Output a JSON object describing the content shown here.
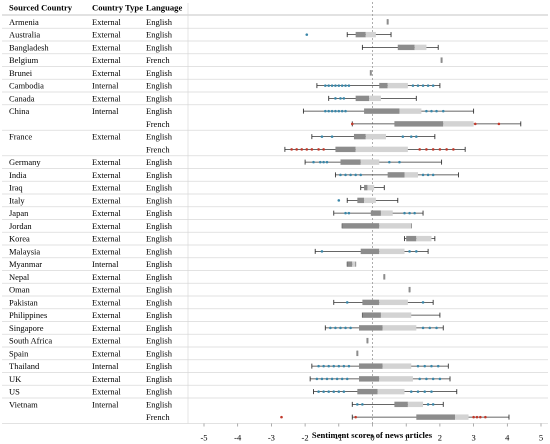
{
  "table": {
    "headers": [
      "Sourced Country",
      "Country Type",
      "Language"
    ]
  },
  "chart_data": {
    "type": "box",
    "xlabel": "Sentiment scores of news articles",
    "xlim": [
      -5.5,
      5
    ],
    "xticks": [
      -5,
      -4,
      -3,
      -2,
      -1,
      0,
      1,
      2,
      3,
      4,
      5
    ],
    "reference_line": 0,
    "colors": {
      "whisker": "#333333",
      "box_lower": "#8c8c8c",
      "box_upper": "#d3d3d3",
      "outlier_english": "#3a86a8",
      "outlier_french": "#c0392b",
      "grid": "#d9d9d9",
      "zero_line": "#999999"
    },
    "rows": [
      {
        "country": "Armenia",
        "type": "External",
        "language": "English",
        "min": 0.45,
        "q1": 0.45,
        "median": 0.45,
        "q3": 0.45,
        "max": 0.45,
        "outliers": []
      },
      {
        "country": "Australia",
        "type": "External",
        "language": "English",
        "min": -0.75,
        "q1": -0.5,
        "median": -0.2,
        "q3": 0.1,
        "max": 0.55,
        "outliers": [
          -1.95
        ]
      },
      {
        "country": "Bangladesh",
        "type": "External",
        "language": "English",
        "min": -0.3,
        "q1": 0.75,
        "median": 1.25,
        "q3": 1.6,
        "max": 1.95,
        "outliers": []
      },
      {
        "country": "Belgium",
        "type": "External",
        "language": "French",
        "min": 2.05,
        "q1": 2.05,
        "median": 2.05,
        "q3": 2.05,
        "max": 2.05,
        "outliers": []
      },
      {
        "country": "Brunei",
        "type": "External",
        "language": "English",
        "min": -0.05,
        "q1": -0.05,
        "median": -0.05,
        "q3": -0.05,
        "max": -0.05,
        "outliers": []
      },
      {
        "country": "Cambodia",
        "type": "Internal",
        "language": "English",
        "min": -1.65,
        "q1": 0.2,
        "median": 0.45,
        "q3": 1.05,
        "max": 2.0,
        "outliers": [
          -1.4,
          -1.3,
          -1.2,
          -1.1,
          -1.0,
          -0.9,
          -0.8,
          -0.7,
          1.2,
          1.35,
          1.5,
          1.65,
          1.8
        ]
      },
      {
        "country": "Canada",
        "type": "External",
        "language": "English",
        "min": -1.3,
        "q1": -0.5,
        "median": -0.1,
        "q3": 0.25,
        "max": 1.3,
        "outliers": [
          -1.1,
          -0.95,
          -0.85
        ]
      },
      {
        "country": "China",
        "type": "Internal",
        "language": "English",
        "min": -2.05,
        "q1": -0.25,
        "median": 0.8,
        "q3": 1.45,
        "max": 3.0,
        "outliers": [
          -1.4,
          -1.3,
          -1.2,
          -1.1,
          -1.0,
          -0.9,
          -0.8,
          1.6,
          1.75,
          1.9,
          2.1
        ]
      },
      {
        "country": "",
        "type": "",
        "language": "French",
        "min": -0.6,
        "q1": 0.65,
        "median": 2.1,
        "q3": 3.0,
        "max": 4.4,
        "outliers": [
          -0.6,
          3.05,
          3.75
        ]
      },
      {
        "country": "France",
        "type": "External",
        "language": "English",
        "min": -1.8,
        "q1": -0.55,
        "median": -0.2,
        "q3": 0.4,
        "max": 1.85,
        "outliers": [
          -1.5,
          -1.2,
          0.9,
          1.15,
          1.3
        ]
      },
      {
        "country": "",
        "type": "",
        "language": "French",
        "min": -2.6,
        "q1": -1.1,
        "median": -0.5,
        "q3": 1.05,
        "max": 2.75,
        "outliers": [
          -2.4,
          -2.25,
          -2.1,
          -1.95,
          -1.8,
          -1.6,
          -1.45,
          1.4,
          1.6,
          1.8,
          2.0,
          2.2,
          2.4
        ]
      },
      {
        "country": "Germany",
        "type": "External",
        "language": "English",
        "min": -2.0,
        "q1": -0.95,
        "median": -0.35,
        "q3": 0.2,
        "max": 2.05,
        "outliers": [
          -1.75,
          -1.55,
          -1.45,
          -1.35,
          0.5,
          0.8
        ]
      },
      {
        "country": "India",
        "type": "External",
        "language": "English",
        "min": -1.1,
        "q1": 0.45,
        "median": 0.95,
        "q3": 1.35,
        "max": 2.55,
        "outliers": [
          -0.95,
          -0.8,
          -0.65,
          -0.5,
          -0.35,
          1.5,
          1.65,
          1.8
        ]
      },
      {
        "country": "Iraq",
        "type": "External",
        "language": "English",
        "min": -0.35,
        "q1": -0.25,
        "median": -0.15,
        "q3": 0.05,
        "max": 0.35,
        "outliers": []
      },
      {
        "country": "Italy",
        "type": "External",
        "language": "English",
        "min": -0.75,
        "q1": -0.45,
        "median": -0.25,
        "q3": 0.1,
        "max": 0.75,
        "outliers": [
          -1.0
        ]
      },
      {
        "country": "Japan",
        "type": "External",
        "language": "English",
        "min": -1.15,
        "q1": -0.05,
        "median": 0.25,
        "q3": 0.6,
        "max": 1.5,
        "outliers": [
          -0.8,
          -0.7,
          0.95,
          1.1,
          1.25
        ]
      },
      {
        "country": "Jordan",
        "type": "External",
        "language": "English",
        "min": -0.9,
        "q1": -0.9,
        "median": 0.2,
        "q3": 1.15,
        "max": 1.15,
        "outliers": []
      },
      {
        "country": "Korea",
        "type": "External",
        "language": "English",
        "min": 0.95,
        "q1": 1.0,
        "median": 1.3,
        "q3": 1.75,
        "max": 1.85,
        "outliers": []
      },
      {
        "country": "Malaysia",
        "type": "External",
        "language": "English",
        "min": -1.7,
        "q1": -0.35,
        "median": 0.2,
        "q3": 0.95,
        "max": 1.65,
        "outliers": [
          -1.5,
          1.1,
          1.3
        ]
      },
      {
        "country": "Myanmar",
        "type": "Internal",
        "language": "English",
        "min": -0.75,
        "q1": -0.75,
        "median": -0.6,
        "q3": -0.5,
        "max": -0.5,
        "outliers": []
      },
      {
        "country": "Nepal",
        "type": "External",
        "language": "English",
        "min": 0.35,
        "q1": 0.35,
        "median": 0.35,
        "q3": 0.35,
        "max": 0.35,
        "outliers": []
      },
      {
        "country": "Oman",
        "type": "External",
        "language": "English",
        "min": 1.1,
        "q1": 1.1,
        "median": 1.1,
        "q3": 1.1,
        "max": 1.1,
        "outliers": []
      },
      {
        "country": "Pakistan",
        "type": "External",
        "language": "English",
        "min": -1.15,
        "q1": -0.3,
        "median": 0.2,
        "q3": 1.05,
        "max": 1.8,
        "outliers": [
          -0.75,
          1.5
        ]
      },
      {
        "country": "Philippines",
        "type": "External",
        "language": "English",
        "min": -0.3,
        "q1": -0.3,
        "median": 0.25,
        "q3": 1.15,
        "max": 2.0,
        "outliers": []
      },
      {
        "country": "Singapore",
        "type": "External",
        "language": "English",
        "min": -1.4,
        "q1": -0.4,
        "median": 0.3,
        "q3": 1.3,
        "max": 2.1,
        "outliers": [
          -1.25,
          -1.1,
          -0.95,
          -0.8,
          -0.65,
          1.5,
          1.7,
          1.9
        ]
      },
      {
        "country": "South Africa",
        "type": "External",
        "language": "English",
        "min": -0.15,
        "q1": -0.15,
        "median": -0.15,
        "q3": -0.15,
        "max": -0.15,
        "outliers": []
      },
      {
        "country": "Spain",
        "type": "External",
        "language": "English",
        "min": -0.45,
        "q1": -0.45,
        "median": -0.45,
        "q3": -0.45,
        "max": -0.45,
        "outliers": []
      },
      {
        "country": "Thailand",
        "type": "Internal",
        "language": "English",
        "min": -1.8,
        "q1": -0.4,
        "median": 0.3,
        "q3": 1.15,
        "max": 2.25,
        "outliers": [
          -1.6,
          -1.45,
          -1.3,
          -1.15,
          -1.0,
          -0.85,
          -0.7,
          1.35,
          1.55,
          1.75,
          1.95
        ]
      },
      {
        "country": "UK",
        "type": "External",
        "language": "English",
        "min": -1.85,
        "q1": -0.4,
        "median": 0.2,
        "q3": 1.2,
        "max": 2.3,
        "outliers": [
          -1.65,
          -1.5,
          -1.35,
          -1.2,
          -1.05,
          -0.9,
          -0.75,
          1.4,
          1.6,
          1.8,
          2.0
        ]
      },
      {
        "country": "US",
        "type": "External",
        "language": "English",
        "min": -1.75,
        "q1": -0.45,
        "median": 0.15,
        "q3": 0.95,
        "max": 2.5,
        "outliers": [
          -1.6,
          -1.45,
          -1.3,
          -1.15,
          -1.0,
          -0.85,
          1.15,
          1.35,
          1.55,
          1.75
        ]
      },
      {
        "country": "Vietnam",
        "type": "Internal",
        "language": "English",
        "min": -0.6,
        "q1": 0.65,
        "median": 1.05,
        "q3": 1.5,
        "max": 2.1,
        "outliers": [
          -0.45,
          -0.3,
          1.65,
          1.8
        ]
      },
      {
        "country": "",
        "type": "",
        "language": "French",
        "min": -0.6,
        "q1": 1.3,
        "median": 2.45,
        "q3": 2.85,
        "max": 4.05,
        "outliers": [
          -2.7,
          -0.5,
          3.0,
          3.1,
          3.2,
          3.35
        ]
      }
    ]
  }
}
